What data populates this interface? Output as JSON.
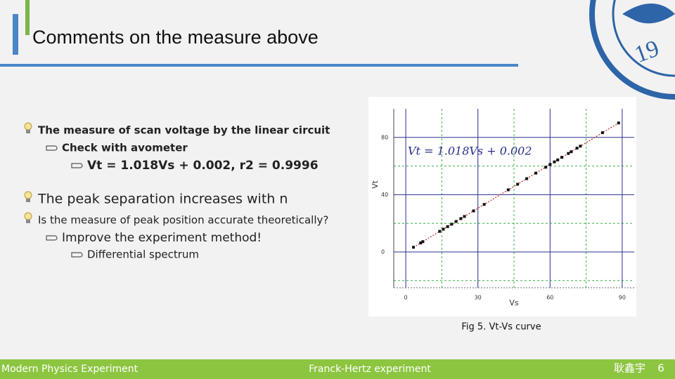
{
  "header": {
    "title": "Comments on the measure above"
  },
  "logo": {
    "text": "19"
  },
  "bullets": [
    {
      "text": "The measure of scan voltage by the linear circuit",
      "children": [
        {
          "text": "Check with avometer",
          "children": [
            {
              "text": "Vt = 1.018Vs + 0.002,    r2 = 0.9996"
            }
          ]
        }
      ]
    },
    {
      "text": "The peak separation increases with n"
    },
    {
      "text": "Is the measure of peak position accurate theoretically?",
      "children": [
        {
          "text": "Improve the experiment method!",
          "children": [
            {
              "text": "Differential spectrum"
            }
          ]
        }
      ]
    }
  ],
  "chart_data": {
    "type": "scatter",
    "x_label": "Vs",
    "y_label": "Vt",
    "annotation": "Vt = 1.018Vs + 0.002",
    "fit": {
      "slope": 1.018,
      "intercept": 0.002
    },
    "x": [
      3.2,
      6.2,
      7.1,
      14.1,
      15.6,
      17.4,
      19.1,
      20.9,
      22.9,
      24.4,
      28.2,
      32.6,
      42.6,
      46.5,
      50.3,
      54.1,
      58.2,
      60,
      61.8,
      63.2,
      64.9,
      67.6,
      68.8,
      71.2,
      72.6,
      81.8,
      88.5
    ],
    "values": [
      3.3,
      6.3,
      7.2,
      14.4,
      15.9,
      17.7,
      19.4,
      21.3,
      23.3,
      24.8,
      28.7,
      33.2,
      43.4,
      47.3,
      51.2,
      55.1,
      59.2,
      61.1,
      62.9,
      64.3,
      66.1,
      68.8,
      70.0,
      72.5,
      73.9,
      83.3,
      90.1
    ],
    "color": "#111111",
    "fit_color": "#cc2222",
    "xlim": [
      -5,
      95
    ],
    "ylim": [
      -25,
      100
    ],
    "xticks": [
      0,
      30,
      60,
      90
    ],
    "yticks": [
      0,
      40,
      80
    ],
    "minor_xticks": [
      15,
      45,
      75
    ],
    "minor_yticks": [
      -20,
      20,
      60
    ],
    "grid": true,
    "caption": "Fig 5. Vt-Vs curve"
  },
  "footer": {
    "left": "Modern Physics Experiment",
    "center": "Franck-Hertz experiment",
    "author": "耿鑫宇",
    "page": "6"
  }
}
